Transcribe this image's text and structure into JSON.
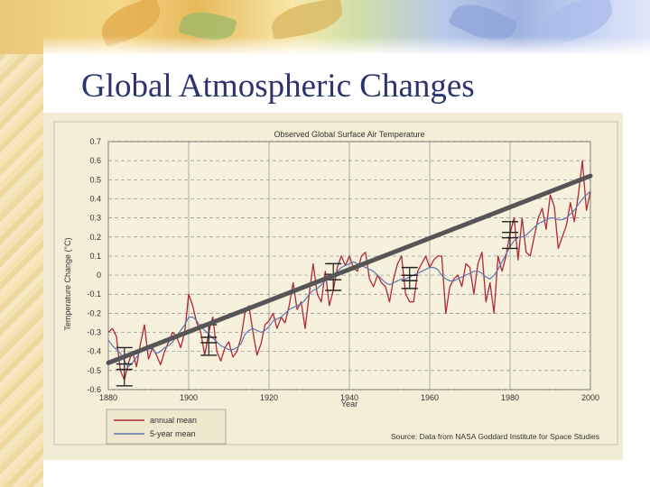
{
  "slide": {
    "title": "Global Atmospheric Changes"
  },
  "colors": {
    "title": "#2c3470",
    "plot_bg": "#f6f1dc",
    "annual": "#b0283a",
    "five_year": "#5d79b0",
    "trend": "#555555",
    "grid": "#8c8c8c"
  },
  "chart_data": {
    "type": "line",
    "title": "Observed Global Surface Air Temperature",
    "xlabel": "Year",
    "ylabel": "Temperature Change (°C)",
    "xlim": [
      1880,
      2000
    ],
    "ylim": [
      -0.6,
      0.7
    ],
    "x_ticks": [
      "1880",
      "1900",
      "1920",
      "1940",
      "1960",
      "1980",
      "2000"
    ],
    "y_ticks": [
      "0.7",
      "0.6",
      "0.5",
      "0.4",
      "0.3",
      "0.2",
      "0.1",
      "0",
      "-0.1",
      "-0.2",
      "-0.3",
      "-0.4",
      "-0.5",
      "-0.6"
    ],
    "grid": true,
    "legend_position": "bottom-left",
    "source": "Source: Data from NASA Goddard Institute for Space Studies",
    "x": [
      1880,
      1881,
      1882,
      1883,
      1884,
      1885,
      1886,
      1887,
      1888,
      1889,
      1890,
      1891,
      1892,
      1893,
      1894,
      1895,
      1896,
      1897,
      1898,
      1899,
      1900,
      1901,
      1902,
      1903,
      1904,
      1905,
      1906,
      1907,
      1908,
      1909,
      1910,
      1911,
      1912,
      1913,
      1914,
      1915,
      1916,
      1917,
      1918,
      1919,
      1920,
      1921,
      1922,
      1923,
      1924,
      1925,
      1926,
      1927,
      1928,
      1929,
      1930,
      1931,
      1932,
      1933,
      1934,
      1935,
      1936,
      1937,
      1938,
      1939,
      1940,
      1941,
      1942,
      1943,
      1944,
      1945,
      1946,
      1947,
      1948,
      1949,
      1950,
      1951,
      1952,
      1953,
      1954,
      1955,
      1956,
      1957,
      1958,
      1959,
      1960,
      1961,
      1962,
      1963,
      1964,
      1965,
      1966,
      1967,
      1968,
      1969,
      1970,
      1971,
      1972,
      1973,
      1974,
      1975,
      1976,
      1977,
      1978,
      1979,
      1980,
      1981,
      1982,
      1983,
      1984,
      1985,
      1986,
      1987,
      1988,
      1989,
      1990,
      1991,
      1992,
      1993,
      1994,
      1995,
      1996,
      1997,
      1998,
      1999,
      2000
    ],
    "series": [
      {
        "name": "annual mean",
        "values": [
          -0.3,
          -0.28,
          -0.32,
          -0.5,
          -0.55,
          -0.46,
          -0.4,
          -0.48,
          -0.36,
          -0.26,
          -0.44,
          -0.38,
          -0.42,
          -0.47,
          -0.4,
          -0.35,
          -0.3,
          -0.32,
          -0.38,
          -0.3,
          -0.1,
          -0.16,
          -0.25,
          -0.3,
          -0.42,
          -0.3,
          -0.22,
          -0.4,
          -0.45,
          -0.38,
          -0.35,
          -0.43,
          -0.4,
          -0.33,
          -0.2,
          -0.16,
          -0.3,
          -0.42,
          -0.36,
          -0.26,
          -0.24,
          -0.2,
          -0.28,
          -0.22,
          -0.25,
          -0.16,
          -0.04,
          -0.18,
          -0.14,
          -0.28,
          -0.1,
          0.06,
          -0.1,
          -0.14,
          0.02,
          -0.16,
          -0.08,
          0.04,
          0.1,
          0.05,
          0.1,
          0.04,
          0.02,
          0.1,
          0.12,
          -0.02,
          -0.06,
          0.0,
          -0.04,
          -0.06,
          -0.14,
          -0.02,
          0.06,
          0.1,
          -0.1,
          -0.14,
          -0.14,
          0.02,
          0.06,
          0.1,
          0.04,
          0.08,
          0.1,
          0.1,
          -0.2,
          -0.06,
          -0.02,
          0.0,
          -0.06,
          0.06,
          0.04,
          -0.1,
          0.06,
          0.12,
          -0.14,
          -0.04,
          -0.2,
          0.1,
          0.02,
          0.1,
          0.22,
          0.3,
          0.08,
          0.3,
          0.12,
          0.1,
          0.2,
          0.3,
          0.35,
          0.24,
          0.42,
          0.36,
          0.14,
          0.2,
          0.26,
          0.38,
          0.28,
          0.42,
          0.6,
          0.34,
          0.44
        ]
      },
      {
        "name": "5-year mean",
        "values": [
          -0.34,
          -0.37,
          -0.39,
          -0.41,
          -0.45,
          -0.48,
          -0.46,
          -0.43,
          -0.4,
          -0.39,
          -0.38,
          -0.39,
          -0.41,
          -0.4,
          -0.38,
          -0.37,
          -0.35,
          -0.32,
          -0.29,
          -0.26,
          -0.22,
          -0.22,
          -0.24,
          -0.27,
          -0.29,
          -0.31,
          -0.33,
          -0.35,
          -0.37,
          -0.38,
          -0.39,
          -0.39,
          -0.38,
          -0.36,
          -0.31,
          -0.29,
          -0.28,
          -0.29,
          -0.3,
          -0.29,
          -0.27,
          -0.24,
          -0.23,
          -0.22,
          -0.2,
          -0.18,
          -0.17,
          -0.16,
          -0.15,
          -0.13,
          -0.1,
          -0.08,
          -0.07,
          -0.05,
          -0.03,
          -0.02,
          0.0,
          0.02,
          0.04,
          0.05,
          0.06,
          0.07,
          0.06,
          0.05,
          0.04,
          0.03,
          0.02,
          0.0,
          -0.02,
          -0.04,
          -0.05,
          -0.04,
          -0.03,
          -0.02,
          -0.02,
          -0.01,
          0.0,
          0.01,
          0.02,
          0.03,
          0.04,
          0.04,
          0.03,
          0.0,
          -0.02,
          -0.03,
          -0.03,
          -0.02,
          -0.01,
          0.0,
          0.01,
          0.02,
          0.02,
          0.01,
          -0.01,
          -0.02,
          0.0,
          0.03,
          0.07,
          0.11,
          0.15,
          0.18,
          0.2,
          0.2,
          0.21,
          0.23,
          0.25,
          0.27,
          0.28,
          0.29,
          0.3,
          0.3,
          0.29,
          0.29,
          0.3,
          0.32,
          0.34,
          0.37,
          0.4,
          0.42,
          0.44
        ]
      }
    ],
    "trend_line": {
      "from": [
        1880,
        -0.46
      ],
      "to": [
        2000,
        0.52
      ]
    },
    "uncertainty_bars": [
      {
        "x": 1884,
        "low": -0.58,
        "high": -0.38
      },
      {
        "x": 1905,
        "low": -0.42,
        "high": -0.26
      },
      {
        "x": 1936,
        "low": -0.08,
        "high": 0.06
      },
      {
        "x": 1955,
        "low": -0.07,
        "high": 0.04
      },
      {
        "x": 1980,
        "low": 0.14,
        "high": 0.28
      }
    ]
  }
}
